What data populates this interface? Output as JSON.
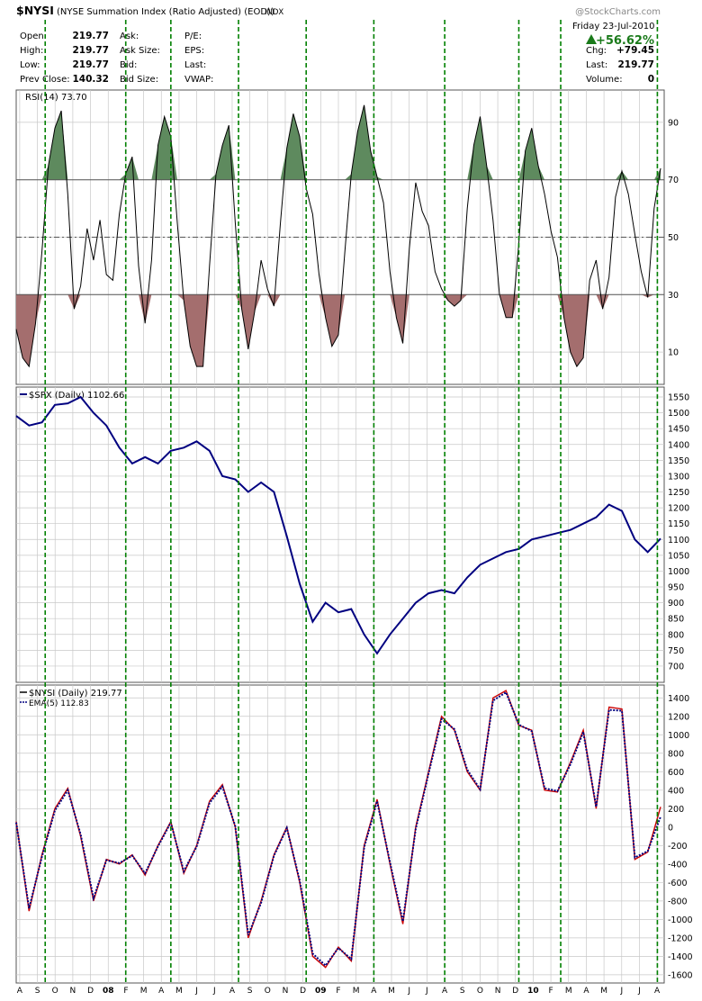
{
  "header": {
    "symbol": "$NYSI",
    "description": "(NYSE Summation Index (Ratio Adjusted) (EOD))",
    "exchange": "INDX",
    "watermark": "@StockCharts.com",
    "date": "Friday   23-Jul-2010",
    "change_pct": "+56.62%",
    "fields": [
      {
        "label": "Open",
        "value": "219.77"
      },
      {
        "label": "High:",
        "value": "219.77"
      },
      {
        "label": "Low:",
        "value": "219.77"
      },
      {
        "label": "Prev Close:",
        "value": "140.32"
      }
    ],
    "fields2": [
      "Ask:",
      "Ask Size:",
      "Bid:",
      "Bid Size:"
    ],
    "fields3": [
      "P/E:",
      "EPS:",
      "Last:",
      "VWAP:"
    ],
    "fields4": [
      {
        "label": "Chg:",
        "value": "+79.45"
      },
      {
        "label": "Last:",
        "value": "219.77"
      },
      {
        "label": "Volume:",
        "value": "0"
      }
    ]
  },
  "colors": {
    "overbought": "#5e8a5e",
    "oversold": "#a46e6e",
    "spx": "#000080",
    "nysi": "#cc0000",
    "ema": "#000080",
    "vline": "#008000",
    "grid": "#c8c8c8"
  },
  "chart_data": [
    {
      "type": "area",
      "title": "RSI(14) 73.70",
      "legend": "RSI(14) 73.70",
      "ylim": [
        0,
        100
      ],
      "ticks": [
        10,
        30,
        50,
        70,
        90
      ],
      "tick_labels": [
        "10",
        "30",
        "50",
        "70",
        "90"
      ],
      "reference_lines": [
        30,
        50,
        70
      ],
      "series": [
        {
          "t": [
            0,
            0.01,
            0.02,
            0.03,
            0.04,
            0.05,
            0.06,
            0.07,
            0.08,
            0.09,
            0.1,
            0.11,
            0.12,
            0.13,
            0.14,
            0.15,
            0.16,
            0.17,
            0.18,
            0.19,
            0.2,
            0.21,
            0.22,
            0.23,
            0.24,
            0.25,
            0.26,
            0.27,
            0.28,
            0.29,
            0.3,
            0.31,
            0.32,
            0.33,
            0.34,
            0.35,
            0.36,
            0.37,
            0.38,
            0.39,
            0.4,
            0.41,
            0.42,
            0.43,
            0.44,
            0.45,
            0.46,
            0.47,
            0.48,
            0.49,
            0.5,
            0.51,
            0.52,
            0.53,
            0.54,
            0.55,
            0.56,
            0.57,
            0.58,
            0.59,
            0.6,
            0.61,
            0.62,
            0.63,
            0.64,
            0.65,
            0.66,
            0.67,
            0.68,
            0.69,
            0.7,
            0.71,
            0.72,
            0.73,
            0.74,
            0.75,
            0.76,
            0.77,
            0.78,
            0.79,
            0.8,
            0.81,
            0.82,
            0.83,
            0.84,
            0.85,
            0.86,
            0.87,
            0.88,
            0.89,
            0.9,
            0.91,
            0.92,
            0.93,
            0.94,
            0.95,
            0.96,
            0.97,
            0.98,
            0.99,
            1.0
          ],
          "values": [
            18,
            8,
            5,
            20,
            45,
            75,
            88,
            94,
            65,
            25,
            33,
            53,
            42,
            56,
            37,
            35,
            58,
            72,
            78,
            40,
            20,
            42,
            82,
            92,
            85,
            55,
            28,
            12,
            5,
            5,
            40,
            72,
            82,
            89,
            55,
            25,
            11,
            24,
            42,
            32,
            26,
            55,
            81,
            93,
            85,
            67,
            58,
            37,
            22,
            12,
            16,
            45,
            72,
            87,
            96,
            80,
            71,
            62,
            38,
            22,
            13,
            46,
            69,
            59,
            54,
            38,
            32,
            28,
            26,
            28,
            60,
            82,
            92,
            75,
            56,
            30,
            22,
            22,
            48,
            80,
            88,
            75,
            65,
            52,
            43,
            22,
            10,
            5,
            8,
            35,
            42,
            25,
            36,
            64,
            73,
            65,
            51,
            38,
            29,
            60,
            74
          ]
        }
      ]
    },
    {
      "type": "line",
      "title": "$SPX (Daily) 1102.66",
      "legend": "$SPX (Daily) 1102.66",
      "ylim": [
        660,
        1570
      ],
      "ticks": [
        700,
        750,
        800,
        850,
        900,
        950,
        1000,
        1050,
        1100,
        1150,
        1200,
        1250,
        1300,
        1350,
        1400,
        1450,
        1500,
        1550
      ],
      "tick_labels": [
        "700",
        "750",
        "800",
        "850",
        "900",
        "950",
        "1000",
        "1050",
        "1100",
        "1150",
        "1200",
        "1250",
        "1300",
        "1350",
        "1400",
        "1450",
        "1500",
        "1550"
      ],
      "series": [
        {
          "name": "$SPX (Daily)",
          "t": [
            0,
            0.02,
            0.04,
            0.06,
            0.08,
            0.1,
            0.12,
            0.14,
            0.16,
            0.18,
            0.2,
            0.22,
            0.24,
            0.26,
            0.28,
            0.3,
            0.32,
            0.34,
            0.36,
            0.38,
            0.4,
            0.42,
            0.44,
            0.46,
            0.48,
            0.5,
            0.52,
            0.54,
            0.56,
            0.58,
            0.6,
            0.62,
            0.64,
            0.66,
            0.68,
            0.7,
            0.72,
            0.74,
            0.76,
            0.78,
            0.8,
            0.82,
            0.84,
            0.86,
            0.88,
            0.9,
            0.92,
            0.94,
            0.96,
            0.98,
            1.0
          ],
          "values": [
            1490,
            1460,
            1470,
            1525,
            1530,
            1550,
            1500,
            1460,
            1390,
            1340,
            1360,
            1340,
            1380,
            1390,
            1410,
            1380,
            1300,
            1290,
            1250,
            1280,
            1250,
            1110,
            960,
            840,
            900,
            870,
            880,
            800,
            740,
            800,
            850,
            900,
            930,
            940,
            930,
            980,
            1020,
            1040,
            1060,
            1070,
            1100,
            1110,
            1120,
            1130,
            1150,
            1170,
            1210,
            1190,
            1100,
            1060,
            1102.66
          ]
        }
      ]
    },
    {
      "type": "line",
      "title": "$NYSI (Daily) 219.77",
      "legend": [
        "$NYSI (Daily) 219.77",
        "EMA(5) 112.83"
      ],
      "ylim": [
        -1650,
        1500
      ],
      "ticks": [
        -1600,
        -1400,
        -1200,
        -1000,
        -800,
        -600,
        -400,
        -200,
        0,
        200,
        400,
        600,
        800,
        1000,
        1200,
        1400
      ],
      "tick_labels": [
        "-1600",
        "-1400",
        "-1200",
        "-1000",
        "-800",
        "-600",
        "-400",
        "-200",
        "0",
        "200",
        "400",
        "600",
        "800",
        "1000",
        "1200",
        "1400"
      ],
      "series": [
        {
          "name": "$NYSI (Daily)",
          "t": [
            0,
            0.02,
            0.04,
            0.06,
            0.08,
            0.1,
            0.12,
            0.14,
            0.16,
            0.18,
            0.2,
            0.22,
            0.24,
            0.26,
            0.28,
            0.3,
            0.32,
            0.34,
            0.36,
            0.38,
            0.4,
            0.42,
            0.44,
            0.46,
            0.48,
            0.5,
            0.52,
            0.54,
            0.56,
            0.58,
            0.6,
            0.62,
            0.64,
            0.66,
            0.68,
            0.7,
            0.72,
            0.74,
            0.76,
            0.78,
            0.8,
            0.82,
            0.84,
            0.86,
            0.88,
            0.9,
            0.92,
            0.94,
            0.96,
            0.98,
            1.0
          ],
          "values": [
            60,
            -910,
            -300,
            200,
            420,
            -100,
            -800,
            -350,
            -400,
            -300,
            -520,
            -200,
            60,
            -500,
            -200,
            280,
            460,
            0,
            -1200,
            -800,
            -300,
            0,
            -600,
            -1400,
            -1520,
            -1300,
            -1450,
            -200,
            300,
            -400,
            -1050,
            0,
            600,
            1200,
            1050,
            600,
            400,
            1400,
            1480,
            1100,
            1050,
            400,
            380,
            700,
            1050,
            200,
            1300,
            1280,
            -350,
            -270,
            219.77
          ]
        },
        {
          "name": "EMA(5)",
          "t": [
            0,
            0.02,
            0.04,
            0.06,
            0.08,
            0.1,
            0.12,
            0.14,
            0.16,
            0.18,
            0.2,
            0.22,
            0.24,
            0.26,
            0.28,
            0.3,
            0.32,
            0.34,
            0.36,
            0.38,
            0.4,
            0.42,
            0.44,
            0.46,
            0.48,
            0.5,
            0.52,
            0.54,
            0.56,
            0.58,
            0.6,
            0.62,
            0.64,
            0.66,
            0.68,
            0.7,
            0.72,
            0.74,
            0.76,
            0.78,
            0.8,
            0.82,
            0.84,
            0.86,
            0.88,
            0.9,
            0.92,
            0.94,
            0.96,
            0.98,
            1.0
          ],
          "values": [
            50,
            -880,
            -320,
            180,
            400,
            -80,
            -770,
            -360,
            -390,
            -310,
            -500,
            -210,
            50,
            -480,
            -210,
            260,
            440,
            10,
            -1170,
            -820,
            -310,
            -10,
            -580,
            -1370,
            -1500,
            -1310,
            -1430,
            -220,
            280,
            -380,
            -1020,
            -20,
            580,
            1170,
            1060,
            620,
            410,
            1370,
            1460,
            1110,
            1040,
            420,
            390,
            680,
            1030,
            220,
            1270,
            1260,
            -330,
            -260,
            112.83
          ]
        }
      ]
    }
  ],
  "x_axis": {
    "labels": [
      "A",
      "S",
      "O",
      "N",
      "D",
      "08",
      "F",
      "M",
      "A",
      "M",
      "J",
      "J",
      "A",
      "S",
      "O",
      "N",
      "D",
      "09",
      "F",
      "M",
      "A",
      "M",
      "J",
      "J",
      "A",
      "S",
      "O",
      "N",
      "D",
      "10",
      "F",
      "M",
      "A",
      "M",
      "J",
      "J",
      "A"
    ],
    "bold": [
      "08",
      "09",
      "10"
    ]
  }
}
